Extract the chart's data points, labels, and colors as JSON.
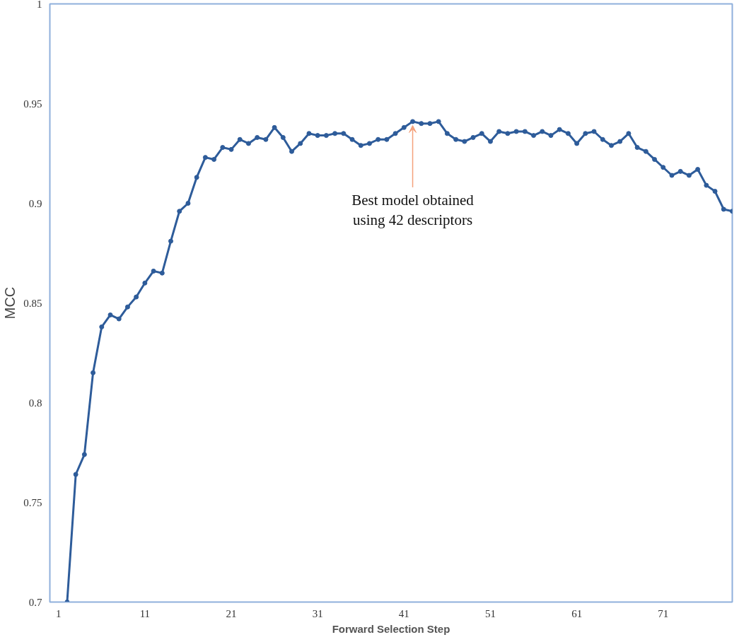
{
  "chart_data": {
    "type": "line",
    "xlabel": "Forward Selection Step",
    "ylabel": "MCC",
    "x": [
      2,
      3,
      4,
      5,
      6,
      7,
      8,
      9,
      10,
      11,
      12,
      13,
      14,
      15,
      16,
      17,
      18,
      19,
      20,
      21,
      22,
      23,
      24,
      25,
      26,
      27,
      28,
      29,
      30,
      31,
      32,
      33,
      34,
      35,
      36,
      37,
      38,
      39,
      40,
      41,
      42,
      43,
      44,
      45,
      46,
      47,
      48,
      49,
      50,
      51,
      52,
      53,
      54,
      55,
      56,
      57,
      58,
      59,
      60,
      61,
      62,
      63,
      64,
      65,
      66,
      67,
      68,
      69,
      70,
      71,
      72,
      73,
      74,
      75,
      76,
      77,
      78,
      79
    ],
    "series": [
      {
        "color": "#2e5c9a",
        "values": [
          0.7,
          0.764,
          0.774,
          0.815,
          0.838,
          0.844,
          0.842,
          0.848,
          0.853,
          0.86,
          0.866,
          0.865,
          0.881,
          0.896,
          0.9,
          0.913,
          0.923,
          0.922,
          0.928,
          0.927,
          0.932,
          0.93,
          0.933,
          0.932,
          0.938,
          0.933,
          0.926,
          0.93,
          0.935,
          0.934,
          0.934,
          0.935,
          0.935,
          0.932,
          0.929,
          0.93,
          0.932,
          0.932,
          0.935,
          0.938,
          0.941,
          0.94,
          0.94,
          0.941,
          0.935,
          0.932,
          0.931,
          0.933,
          0.935,
          0.931,
          0.936,
          0.935,
          0.936,
          0.936,
          0.934,
          0.936,
          0.934,
          0.937,
          0.935,
          0.93,
          0.935,
          0.936,
          0.932,
          0.929,
          0.931,
          0.935,
          0.928,
          0.926,
          0.922,
          0.918,
          0.914,
          0.916,
          0.914,
          0.917,
          0.909,
          0.906,
          0.897,
          0.896
        ]
      }
    ],
    "marker": "circle",
    "line_style": "solid",
    "grid": false,
    "xlim": [
      0,
      79
    ],
    "ylim": [
      0.7,
      1
    ],
    "xticks": [
      1,
      11,
      21,
      31,
      41,
      51,
      61,
      71
    ],
    "yticks": [
      0.7,
      0.75,
      0.8,
      0.85,
      0.9,
      0.95,
      1
    ],
    "annotations": [
      {
        "text": "Best model obtained\nusing 42 descriptors",
        "x": 42,
        "y": 0.941
      }
    ]
  }
}
